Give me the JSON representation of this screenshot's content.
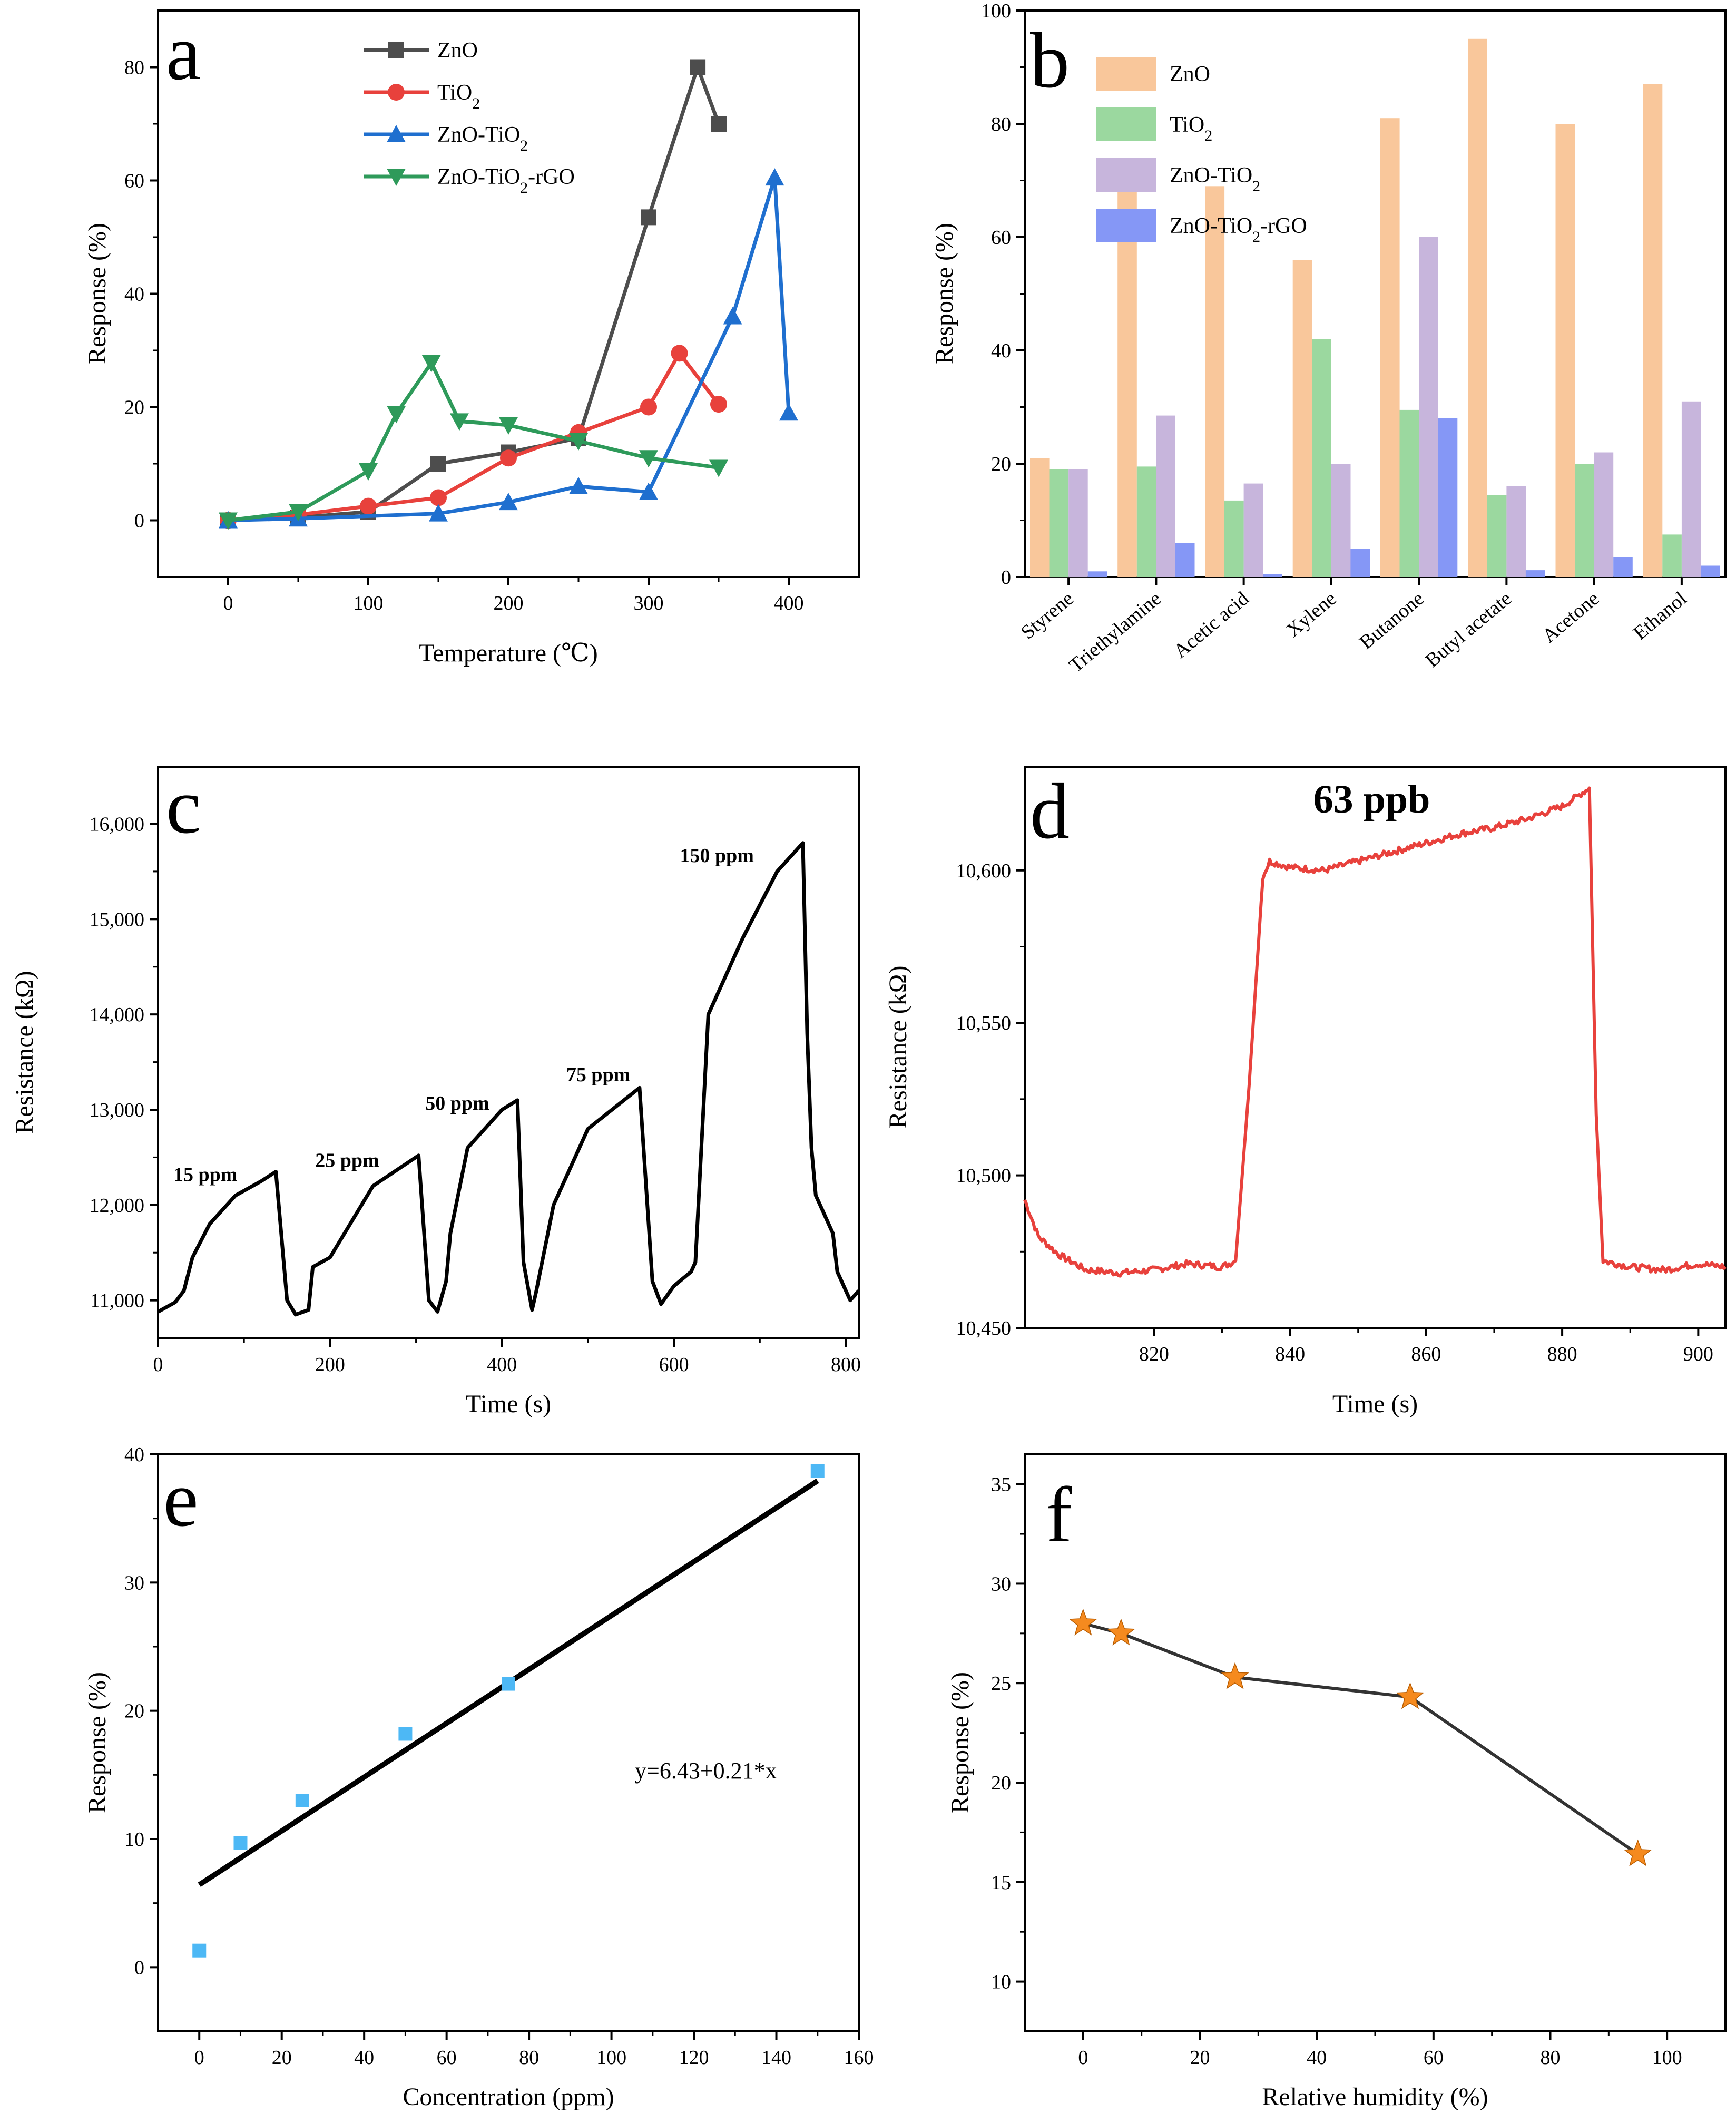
{
  "figure": {
    "panel_letters": [
      "a",
      "b",
      "c",
      "d",
      "e",
      "f"
    ]
  },
  "chart_data": [
    {
      "id": "a",
      "type": "line",
      "letter": "a",
      "xlabel": "Temperature (℃)",
      "ylabel": "Response (%)",
      "xlim": [
        -50,
        450
      ],
      "ylim": [
        -10,
        90
      ],
      "xticks": [
        0,
        100,
        200,
        300,
        400
      ],
      "yticks": [
        0,
        20,
        40,
        60,
        80
      ],
      "series": [
        {
          "name": "ZnO",
          "name_main": "ZnO",
          "name_sub": "",
          "name_rest": "",
          "color": "#4d4d4d",
          "marker": "square",
          "x": [
            0,
            50,
            100,
            150,
            200,
            250,
            300,
            335,
            350
          ],
          "y": [
            0,
            0.5,
            1.5,
            10,
            12,
            14.5,
            53.5,
            80,
            70
          ]
        },
        {
          "name": "TiO2",
          "name_main": "TiO",
          "name_sub": "2",
          "name_rest": "",
          "color": "#e8413c",
          "marker": "circle",
          "x": [
            0,
            50,
            100,
            150,
            200,
            250,
            300,
            322,
            350
          ],
          "y": [
            0,
            1,
            2.5,
            4,
            11,
            15.5,
            20,
            29.5,
            20.5
          ]
        },
        {
          "name": "ZnO-TiO2",
          "name_main": "ZnO-TiO",
          "name_sub": "2",
          "name_rest": "",
          "color": "#1f6fcf",
          "marker": "triangle-up",
          "x": [
            0,
            50,
            150,
            200,
            250,
            300,
            360,
            390,
            400
          ],
          "y": [
            0,
            0.3,
            1.2,
            3.2,
            6,
            5,
            36,
            60.5,
            19
          ]
        },
        {
          "name": "ZnO-TiO2-rGO",
          "name_main": "ZnO-TiO",
          "name_sub": "2",
          "name_rest": "-rGO",
          "color": "#2e9a5a",
          "marker": "triangle-down",
          "x": [
            0,
            50,
            100,
            120,
            145,
            165,
            200,
            250,
            300,
            350
          ],
          "y": [
            0,
            1.5,
            8.7,
            18.8,
            27.8,
            17.5,
            16.8,
            14,
            11,
            9.3
          ]
        }
      ]
    },
    {
      "id": "b",
      "type": "bar",
      "letter": "b",
      "xlabel": "",
      "ylabel": "Response (%)",
      "ylim": [
        0,
        100
      ],
      "yticks": [
        0,
        20,
        40,
        60,
        80,
        100
      ],
      "categories": [
        "Styrene",
        "Triethylamine",
        "Acetic acid",
        "Xylene",
        "Butanone",
        "Butyl acetate",
        "Acetone",
        "Ethanol"
      ],
      "series": [
        {
          "name": "ZnO",
          "name_main": "ZnO",
          "name_sub": "",
          "name_rest": "",
          "color": "#f9c79b",
          "values": [
            21,
            70,
            69,
            56,
            81,
            95,
            80,
            87
          ]
        },
        {
          "name": "TiO2",
          "name_main": "TiO",
          "name_sub": "2",
          "name_rest": "",
          "color": "#9bd89f",
          "values": [
            19,
            19.5,
            13.5,
            42,
            29.5,
            14.5,
            20,
            7.5
          ]
        },
        {
          "name": "ZnO-TiO2",
          "name_main": "ZnO-TiO",
          "name_sub": "2",
          "name_rest": "",
          "color": "#c7b5dc",
          "values": [
            19,
            28.5,
            16.5,
            20,
            60,
            16,
            22,
            31
          ]
        },
        {
          "name": "ZnO-TiO2-rGO",
          "name_main": "ZnO-TiO",
          "name_sub": "2",
          "name_rest": "-rGO",
          "color": "#8597f6",
          "values": [
            1,
            6,
            0.5,
            5,
            28,
            1.2,
            3.5,
            2
          ]
        }
      ]
    },
    {
      "id": "c",
      "type": "line",
      "letter": "c",
      "xlabel": "Time (s)",
      "ylabel": "Resistance (kΩ)",
      "xlim": [
        0,
        815
      ],
      "ylim": [
        10600,
        16600
      ],
      "xticks": [
        0,
        200,
        400,
        600,
        800
      ],
      "yticks": [
        11000,
        12000,
        13000,
        14000,
        15000,
        16000
      ],
      "ytick_labels": [
        "11,000",
        "12,000",
        "13,000",
        "14,000",
        "15,000",
        "16,000"
      ],
      "annotations": [
        {
          "text": "15 ppm",
          "x": 55,
          "y": 12250
        },
        {
          "text": "25 ppm",
          "x": 220,
          "y": 12400
        },
        {
          "text": "50 ppm",
          "x": 348,
          "y": 13000
        },
        {
          "text": "75 ppm",
          "x": 512,
          "y": 13300
        },
        {
          "text": "150 ppm",
          "x": 650,
          "y": 15600
        }
      ],
      "color": "#000000",
      "x": [
        0,
        20,
        30,
        40,
        60,
        90,
        120,
        137,
        150,
        160,
        175,
        180,
        200,
        250,
        303,
        315,
        325,
        335,
        340,
        360,
        400,
        418,
        425,
        435,
        440,
        460,
        500,
        560,
        575,
        585,
        600,
        620,
        625,
        640,
        680,
        720,
        750,
        755,
        760,
        765,
        770,
        785,
        790,
        805,
        815
      ],
      "y": [
        10880,
        10980,
        11100,
        11450,
        11800,
        12100,
        12250,
        12350,
        11000,
        10850,
        10900,
        11350,
        11450,
        12200,
        12520,
        11000,
        10880,
        11200,
        11700,
        12600,
        13000,
        13100,
        11400,
        10900,
        11100,
        12000,
        12800,
        13230,
        11200,
        10960,
        11150,
        11300,
        11400,
        14000,
        14800,
        15500,
        15800,
        13800,
        12600,
        12100,
        12000,
        11700,
        11300,
        11000,
        11100
      ]
    },
    {
      "id": "d",
      "type": "line",
      "letter": "d",
      "xlabel": "Time (s)",
      "ylabel": "Resistance (kΩ)",
      "xlim": [
        801,
        904
      ],
      "ylim": [
        10450,
        10634
      ],
      "xticks": [
        820,
        840,
        860,
        880,
        900
      ],
      "yticks": [
        10450,
        10500,
        10550,
        10600
      ],
      "ytick_labels": [
        "10,450",
        "10,500",
        "10,550",
        "10,600"
      ],
      "annotations": [
        {
          "text": "63 ppb",
          "x": 852,
          "y": 10619
        }
      ],
      "color": "#e8413c",
      "x": [
        801,
        803,
        806,
        810,
        815,
        820,
        825,
        830,
        832,
        834,
        836,
        837,
        840,
        845,
        850,
        855,
        860,
        865,
        870,
        875,
        880,
        884,
        885,
        886,
        890,
        895,
        900,
        904
      ],
      "y": [
        10492,
        10480,
        10474,
        10469,
        10468,
        10469,
        10471,
        10470,
        10472,
        10530,
        10598,
        10603,
        10601,
        10600,
        10603,
        10606,
        10609,
        10612,
        10614,
        10617,
        10621,
        10627,
        10520,
        10472,
        10470,
        10469,
        10471,
        10470
      ]
    },
    {
      "id": "e",
      "type": "scatter",
      "letter": "e",
      "xlabel": "Concentration (ppm)",
      "ylabel": "Response (%)",
      "xlim": [
        -10,
        160
      ],
      "ylim": [
        -5,
        40
      ],
      "xticks": [
        0,
        20,
        40,
        60,
        80,
        100,
        120,
        140,
        160
      ],
      "yticks": [
        0,
        10,
        20,
        30,
        40
      ],
      "points": {
        "x": [
          0,
          10,
          25,
          50,
          75,
          150
        ],
        "y": [
          1.3,
          9.7,
          13,
          18.2,
          22.1,
          38.7
        ],
        "color": "#4db8f5"
      },
      "fit": {
        "equation": "y=6.43+0.21*x",
        "intercept": 6.43,
        "slope": 0.21,
        "x_range": [
          0,
          150
        ],
        "color": "#000000"
      }
    },
    {
      "id": "f",
      "type": "line",
      "letter": "f",
      "xlabel": "Relative humidity (%)",
      "ylabel": "Response (%)",
      "xlim": [
        -10,
        110
      ],
      "ylim": [
        7.5,
        36.5
      ],
      "xticks": [
        0,
        20,
        40,
        60,
        80,
        100
      ],
      "yticks": [
        10,
        15,
        20,
        25,
        30,
        35
      ],
      "color": "#333333",
      "marker_color": "#f58a1f",
      "x": [
        0,
        6.5,
        26,
        56,
        95
      ],
      "y": [
        28,
        27.5,
        25.3,
        24.3,
        16.4
      ]
    }
  ]
}
